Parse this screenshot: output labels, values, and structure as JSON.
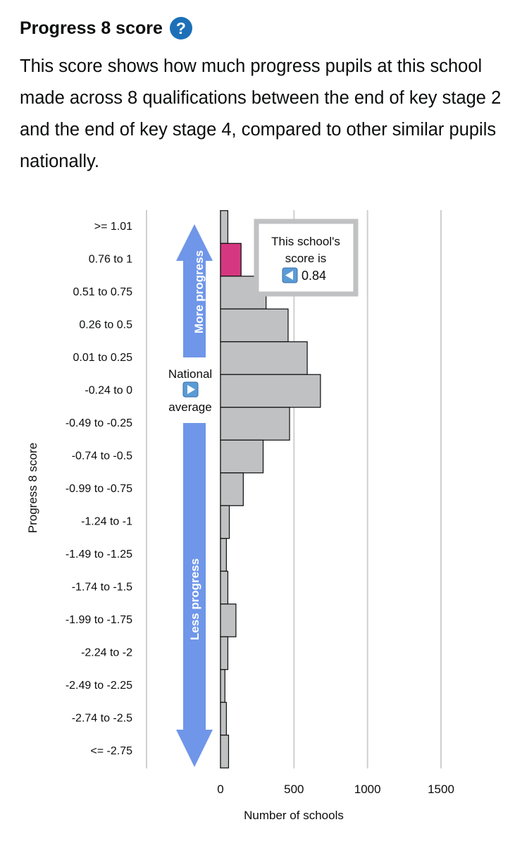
{
  "section": {
    "title": "Progress 8 score",
    "help_icon_glyph": "?",
    "description": "This score shows how much progress pupils at this school made across 8 qualifications between the end of key stage 2 and the end of key stage 4, compared to other similar pupils nationally."
  },
  "chart_data": {
    "type": "bar",
    "orientation": "horizontal",
    "categories": [
      ">= 1.01",
      "0.76 to 1",
      "0.51 to 0.75",
      "0.26 to 0.5",
      "0.01 to 0.25",
      "-0.24 to 0",
      "-0.49 to -0.25",
      "-0.74 to -0.5",
      "-0.99 to -0.75",
      "-1.24 to -1",
      "-1.49 to -1.25",
      "-1.74 to -1.5",
      "-1.99 to -1.75",
      "-2.24 to -2",
      "-2.49 to -2.25",
      "-2.74 to -2.5",
      "<= -2.75"
    ],
    "values": [
      50,
      140,
      310,
      460,
      590,
      680,
      470,
      290,
      155,
      60,
      40,
      50,
      105,
      50,
      30,
      40,
      55
    ],
    "highlight_index": 1,
    "xlabel": "Number of schools",
    "ylabel": "Progress 8 score",
    "xlim": [
      0,
      1600
    ],
    "xticks": [
      0,
      500,
      1000,
      1500
    ],
    "grid": true,
    "colors": {
      "bar": "#bfc1c3",
      "highlight": "#d53880",
      "arrow": "#6f96e8",
      "outline": "#0b0c0c",
      "callout_border": "#bfc1c3",
      "pointer": "#5b9bd5"
    },
    "annotations": {
      "more_progress": "More progress",
      "less_progress": "Less progress",
      "national_line1": "National",
      "national_line2": "average",
      "callout_line1": "This school's",
      "callout_line2": "score is",
      "school_score": "0.84"
    }
  }
}
